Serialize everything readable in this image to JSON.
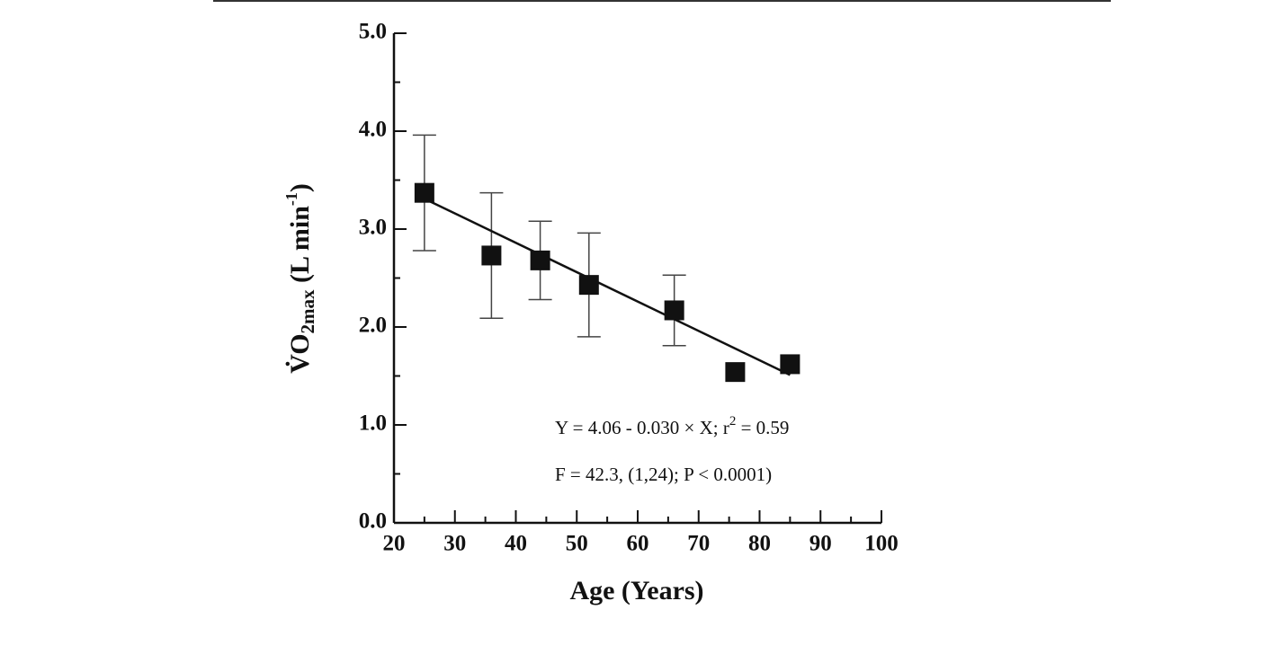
{
  "chart_data": {
    "type": "scatter",
    "xlabel": "Age (Years)",
    "ylabel": {
      "main": "V̇O",
      "sub": "2max",
      "unit": " (L min",
      "sup": "-1",
      "close": ")"
    },
    "x": [
      25,
      36,
      44,
      52,
      66,
      76,
      85
    ],
    "values": [
      3.37,
      2.73,
      2.68,
      2.43,
      2.17,
      1.54,
      1.62
    ],
    "errors": [
      0.59,
      0.64,
      0.4,
      0.53,
      0.36,
      null,
      null
    ],
    "color": "#111111",
    "fit": {
      "x": [
        25,
        85
      ],
      "y": [
        3.31,
        1.51
      ]
    },
    "annotations": [
      {
        "main": "Y = 4.06 - 0.030  × X; r",
        "sup": "2",
        "rest": " = 0.59"
      },
      {
        "main": "F = 42.3, (1,24); P < 0.0001)"
      }
    ],
    "xlim": [
      20,
      100
    ],
    "ylim": [
      0,
      5
    ],
    "xticks": [
      20,
      30,
      40,
      50,
      60,
      70,
      80,
      90,
      100
    ],
    "xticks_minor": [
      25,
      35,
      45,
      55,
      65,
      75,
      85,
      95
    ],
    "yticks": [
      {
        "value": 0,
        "label": "0.0"
      },
      {
        "value": 1,
        "label": "1.0"
      },
      {
        "value": 2,
        "label": "2.0"
      },
      {
        "value": 3,
        "label": "3.0"
      },
      {
        "value": 4,
        "label": "4.0"
      },
      {
        "value": 5,
        "label": "5.0"
      }
    ],
    "yticks_minor": [
      0.5,
      1.5,
      2.5,
      3.5,
      4.5
    ]
  }
}
